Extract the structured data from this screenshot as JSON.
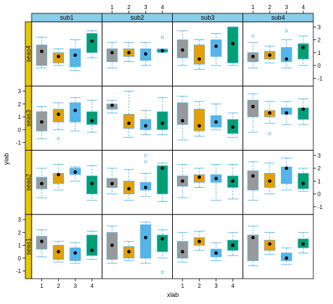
{
  "chart_data": {
    "type": "box",
    "title": "",
    "xlabel": "xlab",
    "ylabel": "yiab",
    "x_categories": [
      "1",
      "2",
      "3",
      "4"
    ],
    "ylim": [
      -1.6,
      3.4
    ],
    "y_ticks": [
      -1,
      0,
      1,
      2,
      3
    ],
    "column_strips": [
      "sub1",
      "sub2",
      "sub3",
      "sub4"
    ],
    "row_strips": [
      "seas4",
      "seas3",
      "seas2",
      "seas1"
    ],
    "group_colors": [
      "#999999",
      "#E69F00",
      "#56B4E9",
      "#009E73"
    ],
    "strip_colors": {
      "top": "#87CEEB",
      "side": "#E8C800"
    },
    "panels": [
      {
        "row": "seas4",
        "col": "sub1",
        "boxes": [
          {
            "group": "1",
            "whisker_low": -0.2,
            "q1": 0.0,
            "median": 1.1,
            "q3": 1.6,
            "whisker_high": 2.2,
            "outliers": []
          },
          {
            "group": "2",
            "whisker_low": 0.0,
            "q1": 0.2,
            "median": 0.7,
            "q3": 1.0,
            "whisker_high": 1.3,
            "outliers": []
          },
          {
            "group": "3",
            "whisker_low": -0.4,
            "q1": -0.1,
            "median": 0.8,
            "q3": 1.3,
            "whisker_high": 2.0,
            "outliers": []
          },
          {
            "group": "4",
            "whisker_low": 0.6,
            "q1": 1.0,
            "median": 1.9,
            "q3": 2.5,
            "whisker_high": 2.7,
            "outliers": []
          }
        ]
      },
      {
        "row": "seas4",
        "col": "sub2",
        "boxes": [
          {
            "group": "1",
            "whisker_low": -0.2,
            "q1": 0.3,
            "median": 1.0,
            "q3": 1.3,
            "whisker_high": 1.8,
            "outliers": []
          },
          {
            "group": "2",
            "whisker_low": 0.3,
            "q1": 0.7,
            "median": 1.0,
            "q3": 1.3,
            "whisker_high": 1.8,
            "outliers": []
          },
          {
            "group": "3",
            "whisker_low": 0.0,
            "q1": 0.4,
            "median": 0.9,
            "q3": 1.3,
            "whisker_high": 1.8,
            "outliers": []
          },
          {
            "group": "4",
            "whisker_low": 1.0,
            "q1": 1.05,
            "median": 1.15,
            "q3": 1.25,
            "whisker_high": 1.3,
            "outliers": [
              2.2
            ]
          }
        ]
      },
      {
        "row": "seas4",
        "col": "sub3",
        "boxes": [
          {
            "group": "1",
            "whisker_low": 0.0,
            "q1": 0.6,
            "median": 1.2,
            "q3": 2.0,
            "whisker_high": 2.7,
            "outliers": []
          },
          {
            "group": "2",
            "whisker_low": -0.3,
            "q1": 0.1,
            "median": 0.5,
            "q3": 1.6,
            "whisker_high": 2.0,
            "outliers": []
          },
          {
            "group": "3",
            "whisker_low": 0.0,
            "q1": 0.7,
            "median": 1.5,
            "q3": 2.0,
            "whisker_high": 2.5,
            "outliers": []
          },
          {
            "group": "4",
            "whisker_low": 0.0,
            "q1": 0.2,
            "median": 1.7,
            "q3": 3.0,
            "whisker_high": 3.0,
            "outliers": []
          }
        ]
      },
      {
        "row": "seas4",
        "col": "sub4",
        "boxes": [
          {
            "group": "1",
            "whisker_low": -0.2,
            "q1": 0.3,
            "median": 0.7,
            "q3": 1.0,
            "whisker_high": 1.8,
            "outliers": [
              2.3
            ]
          },
          {
            "group": "2",
            "whisker_low": 0.2,
            "q1": 0.5,
            "median": 0.8,
            "q3": 1.1,
            "whisker_high": 1.5,
            "outliers": []
          },
          {
            "group": "3",
            "whisker_low": -0.2,
            "q1": 0.3,
            "median": 0.5,
            "q3": 1.4,
            "whisker_high": 2.0,
            "outliers": [
              2.7
            ]
          },
          {
            "group": "4",
            "whisker_low": 0.0,
            "q1": 0.5,
            "median": 1.4,
            "q3": 1.7,
            "whisker_high": 2.3,
            "outliers": []
          }
        ]
      },
      {
        "row": "seas3",
        "col": "sub1",
        "boxes": [
          {
            "group": "1",
            "whisker_low": -0.7,
            "q1": -0.1,
            "median": 0.6,
            "q3": 1.4,
            "whisker_high": 1.8,
            "outliers": []
          },
          {
            "group": "2",
            "whisker_low": 0.0,
            "q1": 0.6,
            "median": 1.2,
            "q3": 1.6,
            "whisker_high": 2.1,
            "outliers": [
              -0.7
            ]
          },
          {
            "group": "3",
            "whisker_low": -0.1,
            "q1": 0.6,
            "median": 1.5,
            "q3": 2.1,
            "whisker_high": 2.5,
            "outliers": []
          },
          {
            "group": "4",
            "whisker_low": -0.2,
            "q1": 0.4,
            "median": 0.7,
            "q3": 1.4,
            "whisker_high": 2.3,
            "outliers": []
          }
        ]
      },
      {
        "row": "seas3",
        "col": "sub2",
        "boxes": [
          {
            "group": "1",
            "whisker_low": 1.3,
            "q1": 1.6,
            "median": 1.9,
            "q3": 2.0,
            "whisker_high": 2.3,
            "outliers": []
          },
          {
            "group": "2",
            "whisker_low": -0.6,
            "q1": 0.1,
            "median": 0.5,
            "q3": 1.2,
            "whisker_high": 3.0,
            "outliers": []
          },
          {
            "group": "3",
            "whisker_low": -0.4,
            "q1": 0.0,
            "median": 0.3,
            "q3": 0.8,
            "whisker_high": 1.5,
            "outliers": []
          },
          {
            "group": "4",
            "whisker_low": -0.4,
            "q1": 0.0,
            "median": 0.5,
            "q3": 1.4,
            "whisker_high": 2.5,
            "outliers": []
          }
        ]
      },
      {
        "row": "seas3",
        "col": "sub3",
        "boxes": [
          {
            "group": "1",
            "whisker_low": -0.8,
            "q1": 0.4,
            "median": 0.7,
            "q3": 2.1,
            "whisker_high": 2.6,
            "outliers": []
          },
          {
            "group": "2",
            "whisker_low": -0.5,
            "q1": -0.1,
            "median": 0.3,
            "q3": 1.6,
            "whisker_high": 2.2,
            "outliers": []
          },
          {
            "group": "3",
            "whisker_low": 0.0,
            "q1": 0.2,
            "median": 0.6,
            "q3": 1.1,
            "whisker_high": 2.0,
            "outliers": []
          },
          {
            "group": "4",
            "whisker_low": -0.6,
            "q1": -0.3,
            "median": 0.2,
            "q3": 0.8,
            "whisker_high": 1.3,
            "outliers": []
          }
        ]
      },
      {
        "row": "seas3",
        "col": "sub4",
        "boxes": [
          {
            "group": "1",
            "whisker_low": -0.2,
            "q1": 1.0,
            "median": 1.8,
            "q3": 2.3,
            "whisker_high": 2.8,
            "outliers": []
          },
          {
            "group": "2",
            "whisker_low": 0.5,
            "q1": 1.0,
            "median": 1.3,
            "q3": 1.5,
            "whisker_high": 2.2,
            "outliers": [
              -0.3
            ]
          },
          {
            "group": "3",
            "whisker_low": 0.4,
            "q1": 1.2,
            "median": 1.3,
            "q3": 1.7,
            "whisker_high": 2.2,
            "outliers": []
          },
          {
            "group": "4",
            "whisker_low": 0.4,
            "q1": 0.8,
            "median": 1.6,
            "q3": 1.7,
            "whisker_high": 2.4,
            "outliers": []
          }
        ]
      },
      {
        "row": "seas2",
        "col": "sub1",
        "boxes": [
          {
            "group": "1",
            "whisker_low": -0.3,
            "q1": 0.4,
            "median": 0.8,
            "q3": 1.3,
            "whisker_high": 2.0,
            "outliers": []
          },
          {
            "group": "2",
            "whisker_low": 0.3,
            "q1": 0.8,
            "median": 1.5,
            "q3": 1.6,
            "whisker_high": 2.3,
            "outliers": []
          },
          {
            "group": "3",
            "whisker_low": 1.0,
            "q1": 1.5,
            "median": 1.7,
            "q3": 2.0,
            "whisker_high": 2.1,
            "outliers": []
          },
          {
            "group": "4",
            "whisker_low": -0.5,
            "q1": 0.0,
            "median": 0.8,
            "q3": 1.4,
            "whisker_high": 2.2,
            "outliers": []
          }
        ]
      },
      {
        "row": "seas2",
        "col": "sub2",
        "boxes": [
          {
            "group": "1",
            "whisker_low": 0.0,
            "q1": 0.5,
            "median": 0.8,
            "q3": 1.2,
            "whisker_high": 2.0,
            "outliers": []
          },
          {
            "group": "2",
            "whisker_low": -0.5,
            "q1": 0.0,
            "median": 0.4,
            "q3": 1.0,
            "whisker_high": 1.9,
            "outliers": []
          },
          {
            "group": "3",
            "whisker_low": -0.2,
            "q1": 0.3,
            "median": 0.5,
            "q3": 0.9,
            "whisker_high": 1.6,
            "outliers": [
              2.5,
              3.0
            ]
          },
          {
            "group": "4",
            "whisker_low": -0.6,
            "q1": 0.0,
            "median": 2.0,
            "q3": 2.2,
            "whisker_high": 2.4,
            "outliers": []
          }
        ]
      },
      {
        "row": "seas2",
        "col": "sub3",
        "boxes": [
          {
            "group": "1",
            "whisker_low": -0.3,
            "q1": 0.6,
            "median": 1.0,
            "q3": 1.4,
            "whisker_high": 2.3,
            "outliers": []
          },
          {
            "group": "2",
            "whisker_low": 0.5,
            "q1": 0.9,
            "median": 1.3,
            "q3": 1.5,
            "whisker_high": 2.0,
            "outliers": []
          },
          {
            "group": "3",
            "whisker_low": -0.5,
            "q1": 0.9,
            "median": 1.2,
            "q3": 1.5,
            "whisker_high": 2.3,
            "outliers": []
          },
          {
            "group": "4",
            "whisker_low": -0.4,
            "q1": 0.5,
            "median": 1.0,
            "q3": 1.4,
            "whisker_high": 2.3,
            "outliers": []
          }
        ]
      },
      {
        "row": "seas2",
        "col": "sub4",
        "boxes": [
          {
            "group": "1",
            "whisker_low": -0.5,
            "q1": 0.3,
            "median": 1.4,
            "q3": 1.8,
            "whisker_high": 2.5,
            "outliers": []
          },
          {
            "group": "2",
            "whisker_low": 0.0,
            "q1": 0.5,
            "median": 1.0,
            "q3": 1.6,
            "whisker_high": 2.4,
            "outliers": []
          },
          {
            "group": "3",
            "whisker_low": 0.3,
            "q1": 0.8,
            "median": 2.0,
            "q3": 2.1,
            "whisker_high": 2.8,
            "outliers": []
          },
          {
            "group": "4",
            "whisker_low": 0.2,
            "q1": 0.4,
            "median": 0.8,
            "q3": 1.6,
            "whisker_high": 2.0,
            "outliers": []
          }
        ]
      },
      {
        "row": "seas1",
        "col": "sub1",
        "boxes": [
          {
            "group": "1",
            "whisker_low": 0.1,
            "q1": 0.7,
            "median": 1.3,
            "q3": 1.7,
            "whisker_high": 2.2,
            "outliers": []
          },
          {
            "group": "2",
            "whisker_low": -0.3,
            "q1": -0.1,
            "median": 0.5,
            "q3": 1.0,
            "whisker_high": 1.3,
            "outliers": []
          },
          {
            "group": "3",
            "whisker_low": -0.4,
            "q1": -0.2,
            "median": 0.4,
            "q3": 0.8,
            "whisker_high": 1.2,
            "outliers": []
          },
          {
            "group": "4",
            "whisker_low": -0.1,
            "q1": 0.2,
            "median": 0.6,
            "q3": 1.8,
            "whisker_high": 2.1,
            "outliers": []
          }
        ]
      },
      {
        "row": "seas1",
        "col": "sub2",
        "boxes": [
          {
            "group": "1",
            "whisker_low": -0.4,
            "q1": -0.1,
            "median": 1.0,
            "q3": 2.0,
            "whisker_high": 2.5,
            "outliers": []
          },
          {
            "group": "2",
            "whisker_low": -0.2,
            "q1": 0.0,
            "median": 0.5,
            "q3": 0.9,
            "whisker_high": 1.3,
            "outliers": []
          },
          {
            "group": "3",
            "whisker_low": -0.4,
            "q1": 0.0,
            "median": 1.6,
            "q3": 2.6,
            "whisker_high": 2.8,
            "outliers": []
          },
          {
            "group": "4",
            "whisker_low": 0.0,
            "q1": 0.5,
            "median": 1.5,
            "q3": 1.8,
            "whisker_high": 2.2,
            "outliers": [
              -1.1
            ]
          }
        ]
      },
      {
        "row": "seas1",
        "col": "sub3",
        "boxes": [
          {
            "group": "1",
            "whisker_low": -0.3,
            "q1": 0.0,
            "median": 0.5,
            "q3": 1.3,
            "whisker_high": 2.0,
            "outliers": []
          },
          {
            "group": "2",
            "whisker_low": 0.6,
            "q1": 1.0,
            "median": 1.3,
            "q3": 1.6,
            "whisker_high": 2.1,
            "outliers": []
          },
          {
            "group": "3",
            "whisker_low": -0.2,
            "q1": 0.1,
            "median": 0.4,
            "q3": 0.7,
            "whisker_high": 1.2,
            "outliers": []
          },
          {
            "group": "4",
            "whisker_low": 0.2,
            "q1": 0.6,
            "median": 1.0,
            "q3": 1.4,
            "whisker_high": 2.0,
            "outliers": []
          }
        ]
      },
      {
        "row": "seas1",
        "col": "sub4",
        "boxes": [
          {
            "group": "1",
            "whisker_low": -0.6,
            "q1": -0.2,
            "median": 1.6,
            "q3": 1.8,
            "whisker_high": 2.5,
            "outliers": []
          },
          {
            "group": "2",
            "whisker_low": 0.3,
            "q1": 0.6,
            "median": 1.1,
            "q3": 1.4,
            "whisker_high": 2.0,
            "outliers": []
          },
          {
            "group": "3",
            "whisker_low": -0.5,
            "q1": -0.2,
            "median": 0.0,
            "q3": 0.4,
            "whisker_high": 0.8,
            "outliers": []
          },
          {
            "group": "4",
            "whisker_low": 0.4,
            "q1": 0.8,
            "median": 1.1,
            "q3": 1.5,
            "whisker_high": 2.0,
            "outliers": []
          }
        ]
      }
    ]
  }
}
